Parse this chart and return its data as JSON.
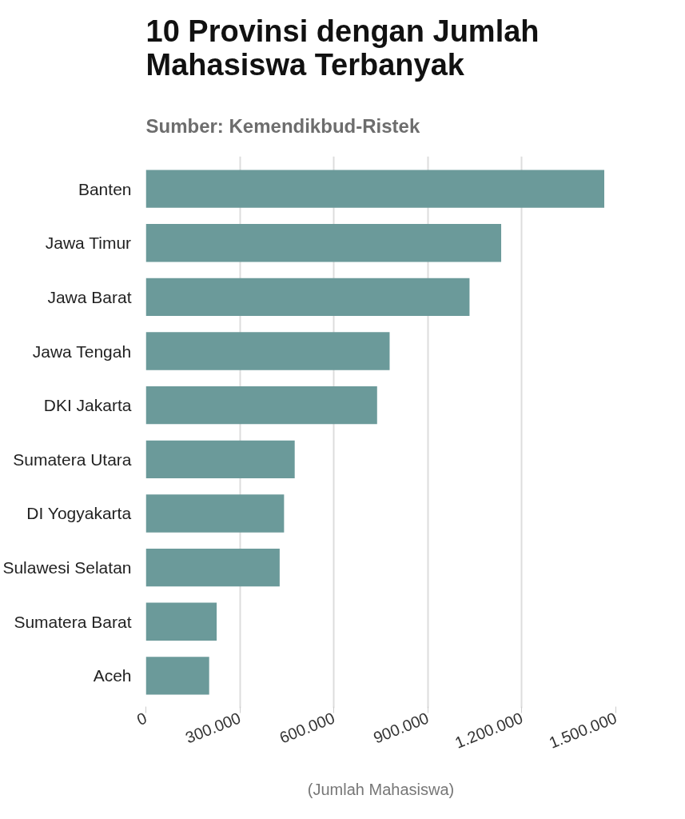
{
  "chart_data": {
    "type": "bar",
    "orientation": "horizontal",
    "title": "10 Provinsi dengan Jumlah Mahasiswa Terbanyak",
    "subtitle": "Sumber: Kemendikbud-Ristek",
    "xlabel": "(Jumlah Mahasiswa)",
    "categories": [
      "Banten",
      "Jawa Timur",
      "Jawa Barat",
      "Jawa Tengah",
      "DKI Jakarta",
      "Sumatera Utara",
      "DI Yogyakarta",
      "Sulawesi Selatan",
      "Sumatera Barat",
      "Aceh"
    ],
    "values": [
      1463000,
      1134000,
      1033000,
      778000,
      738000,
      475000,
      441000,
      427000,
      226000,
      202000
    ],
    "color": "#6b9a9a",
    "xlim": [
      0,
      1500000
    ],
    "xticks": [
      0,
      {
        "value": 300000,
        "label": "300.000"
      },
      {
        "value": 600000,
        "label": "600.000"
      },
      {
        "value": 900000,
        "label": "900.000"
      },
      {
        "value": 1200000,
        "label": "1.200.000"
      },
      {
        "value": 1500000,
        "label": "1.500.000"
      }
    ],
    "grid": "x"
  }
}
